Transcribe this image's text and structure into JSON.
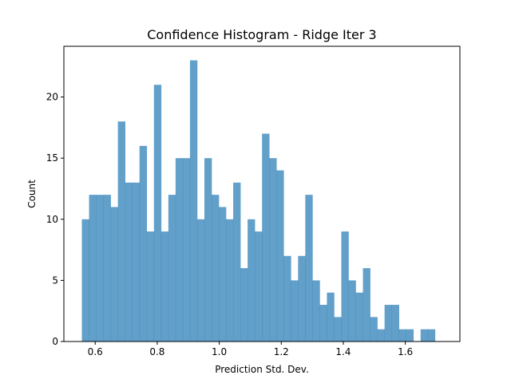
{
  "chart_data": {
    "type": "bar",
    "title": "Confidence Histogram - Ridge Iter 3",
    "xlabel": "Prediction Std. Dev.",
    "ylabel": "Count",
    "bar_color": "#1f77b4",
    "bar_opacity": 0.7,
    "xlim": [
      0.499,
      1.776
    ],
    "ylim": [
      0,
      24.15
    ],
    "xticks": [
      0.6,
      0.8,
      1.0,
      1.2,
      1.4,
      1.6
    ],
    "xtick_labels": [
      "0.6",
      "0.8",
      "1.0",
      "1.2",
      "1.4",
      "1.6"
    ],
    "yticks": [
      0,
      5,
      10,
      15,
      20
    ],
    "ytick_labels": [
      "0",
      "5",
      "10",
      "15",
      "20"
    ],
    "bin_start": 0.557,
    "bin_width": 0.02324,
    "values": [
      10,
      12,
      12,
      12,
      11,
      18,
      13,
      13,
      16,
      9,
      21,
      9,
      12,
      15,
      15,
      23,
      10,
      15,
      12,
      11,
      10,
      13,
      6,
      10,
      9,
      17,
      15,
      14,
      7,
      5,
      7,
      12,
      5,
      3,
      4,
      2,
      9,
      5,
      4,
      6,
      2,
      1,
      3,
      3,
      1,
      1,
      0,
      1,
      1
    ]
  }
}
